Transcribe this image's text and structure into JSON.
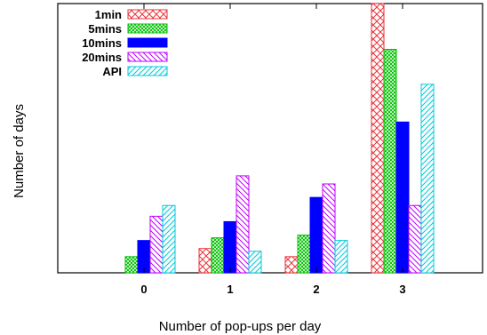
{
  "chart_data": {
    "type": "bar",
    "title": "",
    "xlabel": "Number of pop-ups per day",
    "ylabel": "Number of days",
    "categories": [
      "0",
      "1",
      "2",
      "3"
    ],
    "ylim": [
      0,
      100
    ],
    "y_ticks_shown": false,
    "grid": false,
    "legend_position": "top-left",
    "series": [
      {
        "name": "1min",
        "values": [
          0,
          9,
          6,
          100
        ],
        "color": "#e8333a",
        "pattern": "crosshatch"
      },
      {
        "name": "5mins",
        "values": [
          6,
          13,
          14,
          83
        ],
        "color": "#00c000",
        "pattern": "dense-crosshatch"
      },
      {
        "name": "10mins",
        "values": [
          12,
          19,
          28,
          56
        ],
        "color": "#0000ff",
        "pattern": "solid"
      },
      {
        "name": "20mins",
        "values": [
          21,
          36,
          33,
          25
        ],
        "color": "#c000ff",
        "pattern": "diagonal-down"
      },
      {
        "name": "API",
        "values": [
          25,
          8,
          12,
          70
        ],
        "color": "#00c8d8",
        "pattern": "diagonal-up"
      }
    ]
  }
}
